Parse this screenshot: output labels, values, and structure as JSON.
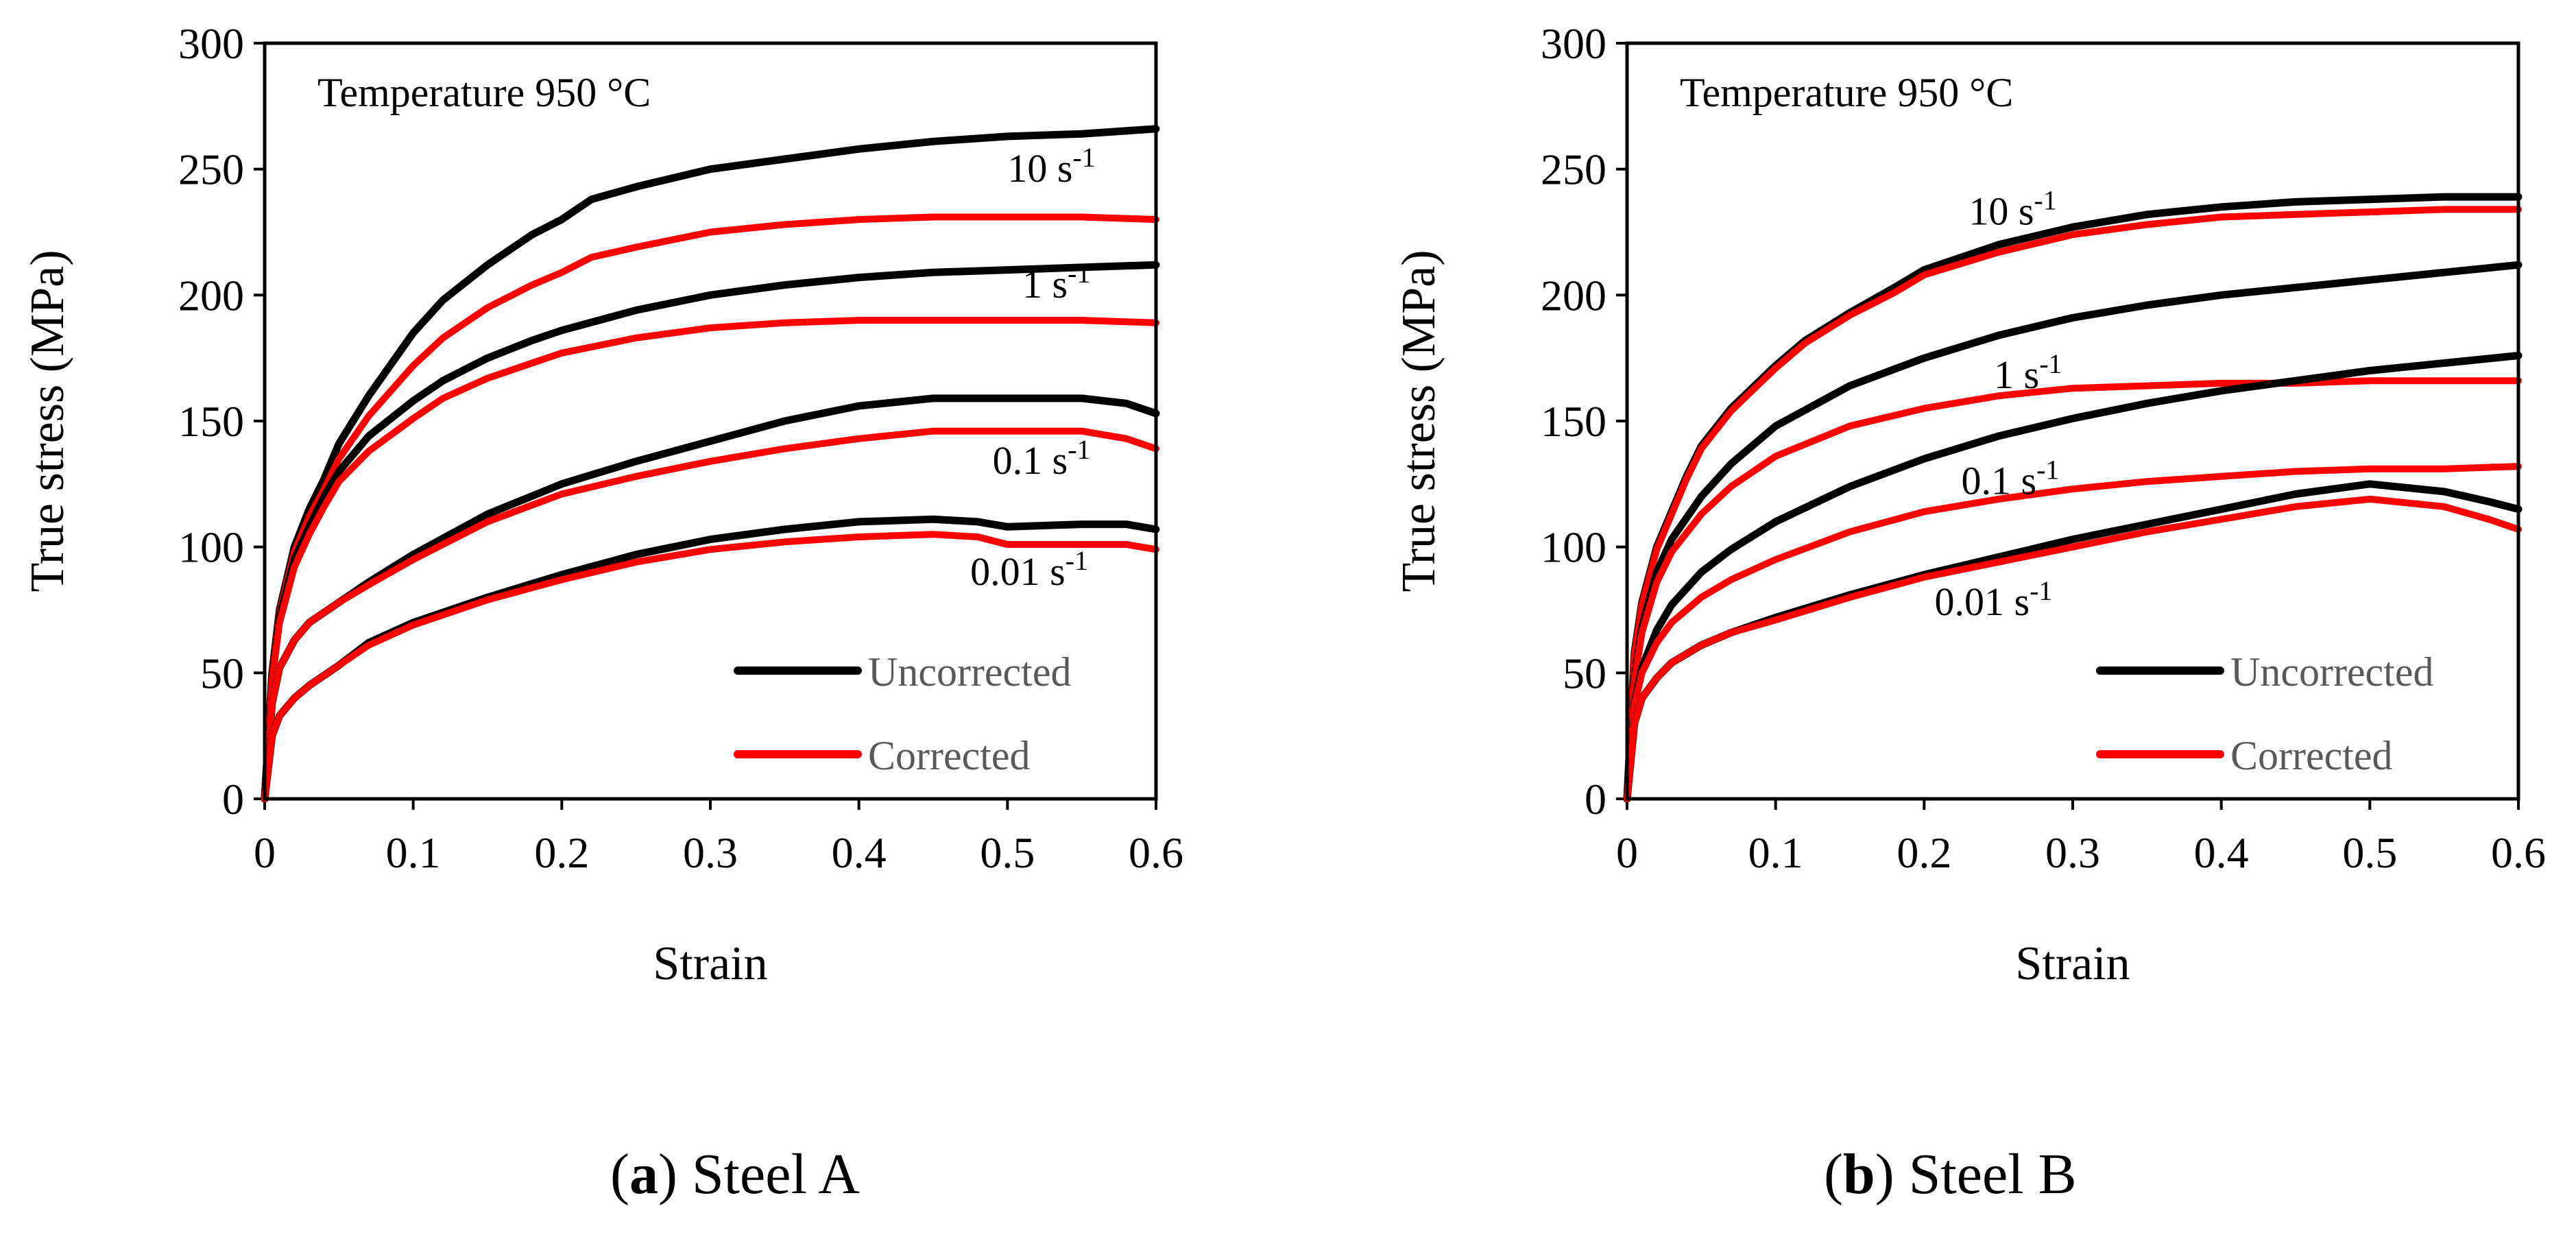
{
  "colors": {
    "uncorrected": "#000000",
    "corrected": "#ff0000",
    "legend_text": "#595959"
  },
  "chart_data": [
    {
      "type": "line",
      "panel_label": "a",
      "caption": "Steel A",
      "annotation": "Temperature 950 °C",
      "xlabel": "Strain",
      "ylabel": "True stress (MPa)",
      "xlim": [
        0,
        0.6
      ],
      "ylim": [
        0,
        300
      ],
      "xticks": [
        "0",
        "0.1",
        "0.2",
        "0.3",
        "0.4",
        "0.5",
        "0.6"
      ],
      "yticks": [
        "0",
        "50",
        "100",
        "150",
        "200",
        "250",
        "300"
      ],
      "legend": {
        "position": "bottom-right",
        "entries": [
          {
            "label": "Uncorrected",
            "color": "#000000"
          },
          {
            "label": "Corrected",
            "color": "#ff0000"
          }
        ]
      },
      "rate_labels": [
        {
          "text": "10 s",
          "sup": "-1",
          "at": [
            0.5,
            245
          ]
        },
        {
          "text": "1 s",
          "sup": "-1",
          "at": [
            0.51,
            199
          ]
        },
        {
          "text": "0.1 s",
          "sup": "-1",
          "at": [
            0.49,
            129
          ]
        },
        {
          "text": "0.01 s",
          "sup": "-1",
          "at": [
            0.475,
            85
          ]
        }
      ],
      "series": [
        {
          "name": "10 s-1 Uncorrected",
          "color": "#000000",
          "x": [
            0,
            0.005,
            0.01,
            0.02,
            0.03,
            0.04,
            0.05,
            0.07,
            0.1,
            0.12,
            0.15,
            0.18,
            0.2,
            0.22,
            0.25,
            0.3,
            0.35,
            0.4,
            0.45,
            0.5,
            0.55,
            0.6
          ],
          "y": [
            0,
            50,
            75,
            100,
            115,
            127,
            141,
            160,
            185,
            198,
            212,
            224,
            230,
            238,
            243,
            250,
            254,
            258,
            261,
            263,
            264,
            266
          ]
        },
        {
          "name": "10 s-1 Corrected",
          "color": "#ff0000",
          "x": [
            0,
            0.005,
            0.01,
            0.02,
            0.03,
            0.04,
            0.05,
            0.07,
            0.1,
            0.12,
            0.15,
            0.18,
            0.2,
            0.22,
            0.25,
            0.3,
            0.35,
            0.4,
            0.45,
            0.5,
            0.55,
            0.6
          ],
          "y": [
            0,
            50,
            74,
            98,
            112,
            123,
            135,
            152,
            172,
            183,
            195,
            204,
            209,
            215,
            219,
            225,
            228,
            230,
            231,
            231,
            231,
            230
          ]
        },
        {
          "name": "1 s-1 Uncorrected",
          "color": "#000000",
          "x": [
            0,
            0.005,
            0.01,
            0.02,
            0.03,
            0.04,
            0.05,
            0.07,
            0.1,
            0.12,
            0.15,
            0.18,
            0.2,
            0.25,
            0.3,
            0.35,
            0.4,
            0.45,
            0.5,
            0.55,
            0.6
          ],
          "y": [
            0,
            48,
            72,
            95,
            108,
            120,
            130,
            144,
            158,
            166,
            175,
            182,
            186,
            194,
            200,
            204,
            207,
            209,
            210,
            211,
            212
          ]
        },
        {
          "name": "1 s-1 Corrected",
          "color": "#ff0000",
          "x": [
            0,
            0.005,
            0.01,
            0.02,
            0.03,
            0.04,
            0.05,
            0.07,
            0.1,
            0.12,
            0.15,
            0.18,
            0.2,
            0.25,
            0.3,
            0.35,
            0.4,
            0.45,
            0.5,
            0.55,
            0.6
          ],
          "y": [
            0,
            47,
            70,
            92,
            105,
            116,
            126,
            138,
            151,
            159,
            167,
            173,
            177,
            183,
            187,
            189,
            190,
            190,
            190,
            190,
            189
          ]
        },
        {
          "name": "0.1 s-1 Uncorrected",
          "color": "#000000",
          "x": [
            0,
            0.005,
            0.01,
            0.02,
            0.03,
            0.05,
            0.07,
            0.1,
            0.15,
            0.2,
            0.25,
            0.3,
            0.35,
            0.4,
            0.45,
            0.5,
            0.55,
            0.58,
            0.6
          ],
          "y": [
            0,
            38,
            52,
            63,
            70,
            78,
            86,
            97,
            113,
            125,
            134,
            142,
            150,
            156,
            159,
            159,
            159,
            157,
            153
          ]
        },
        {
          "name": "0.1 s-1 Corrected",
          "color": "#ff0000",
          "x": [
            0,
            0.005,
            0.01,
            0.02,
            0.03,
            0.05,
            0.07,
            0.1,
            0.15,
            0.2,
            0.25,
            0.3,
            0.35,
            0.4,
            0.45,
            0.5,
            0.55,
            0.58,
            0.6
          ],
          "y": [
            0,
            38,
            52,
            63,
            70,
            78,
            85,
            95,
            110,
            121,
            128,
            134,
            139,
            143,
            146,
            146,
            146,
            143,
            139
          ]
        },
        {
          "name": "0.01 s-1 Uncorrected",
          "color": "#000000",
          "x": [
            0,
            0.005,
            0.01,
            0.02,
            0.03,
            0.05,
            0.07,
            0.1,
            0.15,
            0.2,
            0.25,
            0.3,
            0.35,
            0.4,
            0.45,
            0.48,
            0.5,
            0.55,
            0.58,
            0.6
          ],
          "y": [
            0,
            25,
            33,
            40,
            45,
            53,
            62,
            70,
            80,
            89,
            97,
            103,
            107,
            110,
            111,
            110,
            108,
            109,
            109,
            107
          ]
        },
        {
          "name": "0.01 s-1 Corrected",
          "color": "#ff0000",
          "x": [
            0,
            0.005,
            0.01,
            0.02,
            0.03,
            0.05,
            0.07,
            0.1,
            0.15,
            0.2,
            0.25,
            0.3,
            0.35,
            0.4,
            0.45,
            0.48,
            0.5,
            0.55,
            0.58,
            0.6
          ],
          "y": [
            0,
            25,
            33,
            40,
            45,
            53,
            61,
            69,
            79,
            87,
            94,
            99,
            102,
            104,
            105,
            104,
            101,
            101,
            101,
            99
          ]
        }
      ]
    },
    {
      "type": "line",
      "panel_label": "b",
      "caption": "Steel B",
      "annotation": "Temperature 950 °C",
      "xlabel": "Strain",
      "ylabel": "True stress (MPa)",
      "xlim": [
        0,
        0.6
      ],
      "ylim": [
        0,
        300
      ],
      "xticks": [
        "0",
        "0.1",
        "0.2",
        "0.3",
        "0.4",
        "0.5",
        "0.6"
      ],
      "yticks": [
        "0",
        "50",
        "100",
        "150",
        "200",
        "250",
        "300"
      ],
      "legend": {
        "position": "bottom-right",
        "entries": [
          {
            "label": "Uncorrected",
            "color": "#000000"
          },
          {
            "label": "Corrected",
            "color": "#ff0000"
          }
        ]
      },
      "rate_labels": [
        {
          "text": "10 s",
          "sup": "-1",
          "at": [
            0.23,
            228
          ]
        },
        {
          "text": "1 s",
          "sup": "-1",
          "at": [
            0.247,
            163
          ]
        },
        {
          "text": "0.1 s",
          "sup": "-1",
          "at": [
            0.225,
            121
          ]
        },
        {
          "text": "0.01 s",
          "sup": "-1",
          "at": [
            0.207,
            73
          ]
        }
      ],
      "series": [
        {
          "name": "10 s-1 Uncorrected",
          "color": "#000000",
          "x": [
            0,
            0.005,
            0.01,
            0.02,
            0.03,
            0.04,
            0.05,
            0.07,
            0.1,
            0.12,
            0.15,
            0.18,
            0.2,
            0.25,
            0.3,
            0.35,
            0.4,
            0.45,
            0.5,
            0.55,
            0.6
          ],
          "y": [
            0,
            58,
            78,
            100,
            114,
            128,
            140,
            155,
            172,
            182,
            193,
            203,
            210,
            220,
            227,
            232,
            235,
            237,
            238,
            239,
            239
          ]
        },
        {
          "name": "10 s-1 Corrected",
          "color": "#ff0000",
          "x": [
            0,
            0.005,
            0.01,
            0.02,
            0.03,
            0.04,
            0.05,
            0.07,
            0.1,
            0.12,
            0.15,
            0.18,
            0.2,
            0.25,
            0.3,
            0.35,
            0.4,
            0.45,
            0.5,
            0.55,
            0.6
          ],
          "y": [
            0,
            57,
            77,
            99,
            113,
            127,
            139,
            154,
            171,
            181,
            192,
            201,
            208,
            217,
            224,
            228,
            231,
            232,
            233,
            234,
            234
          ]
        },
        {
          "name": "1 s-1 Uncorrected",
          "color": "#000000",
          "x": [
            0,
            0.005,
            0.01,
            0.02,
            0.03,
            0.05,
            0.07,
            0.1,
            0.15,
            0.2,
            0.25,
            0.3,
            0.35,
            0.4,
            0.45,
            0.5,
            0.55,
            0.6
          ],
          "y": [
            0,
            48,
            68,
            90,
            103,
            120,
            133,
            148,
            164,
            175,
            184,
            191,
            196,
            200,
            203,
            206,
            209,
            212
          ]
        },
        {
          "name": "1 s-1 Corrected",
          "color": "#ff0000",
          "x": [
            0,
            0.005,
            0.01,
            0.02,
            0.03,
            0.05,
            0.07,
            0.1,
            0.15,
            0.2,
            0.25,
            0.3,
            0.35,
            0.4,
            0.45,
            0.5,
            0.55,
            0.6
          ],
          "y": [
            0,
            47,
            66,
            86,
            98,
            113,
            124,
            136,
            148,
            155,
            160,
            163,
            164,
            165,
            165,
            166,
            166,
            166
          ]
        },
        {
          "name": "0.1 s-1 Uncorrected",
          "color": "#000000",
          "x": [
            0,
            0.005,
            0.01,
            0.02,
            0.03,
            0.05,
            0.07,
            0.1,
            0.15,
            0.2,
            0.25,
            0.3,
            0.35,
            0.4,
            0.45,
            0.5,
            0.55,
            0.6
          ],
          "y": [
            0,
            38,
            52,
            67,
            77,
            90,
            99,
            110,
            124,
            135,
            144,
            151,
            157,
            162,
            166,
            170,
            173,
            176
          ]
        },
        {
          "name": "0.1 s-1 Corrected",
          "color": "#ff0000",
          "x": [
            0,
            0.005,
            0.01,
            0.02,
            0.03,
            0.05,
            0.07,
            0.1,
            0.15,
            0.2,
            0.25,
            0.3,
            0.35,
            0.4,
            0.45,
            0.5,
            0.55,
            0.6
          ],
          "y": [
            0,
            37,
            50,
            62,
            70,
            80,
            87,
            95,
            106,
            114,
            119,
            123,
            126,
            128,
            130,
            131,
            131,
            132
          ]
        },
        {
          "name": "0.01 s-1 Uncorrected",
          "color": "#000000",
          "x": [
            0,
            0.005,
            0.01,
            0.02,
            0.03,
            0.05,
            0.07,
            0.1,
            0.15,
            0.2,
            0.25,
            0.3,
            0.35,
            0.4,
            0.45,
            0.5,
            0.55,
            0.58,
            0.6
          ],
          "y": [
            0,
            30,
            40,
            48,
            54,
            61,
            66,
            72,
            81,
            89,
            96,
            103,
            109,
            115,
            121,
            125,
            122,
            118,
            115
          ]
        },
        {
          "name": "0.01 s-1 Corrected",
          "color": "#ff0000",
          "x": [
            0,
            0.005,
            0.01,
            0.02,
            0.03,
            0.05,
            0.07,
            0.1,
            0.15,
            0.2,
            0.25,
            0.3,
            0.35,
            0.4,
            0.45,
            0.5,
            0.55,
            0.58,
            0.6
          ],
          "y": [
            0,
            30,
            40,
            48,
            54,
            61,
            66,
            71,
            80,
            88,
            94,
            100,
            106,
            111,
            116,
            119,
            116,
            111,
            107
          ]
        }
      ]
    }
  ]
}
